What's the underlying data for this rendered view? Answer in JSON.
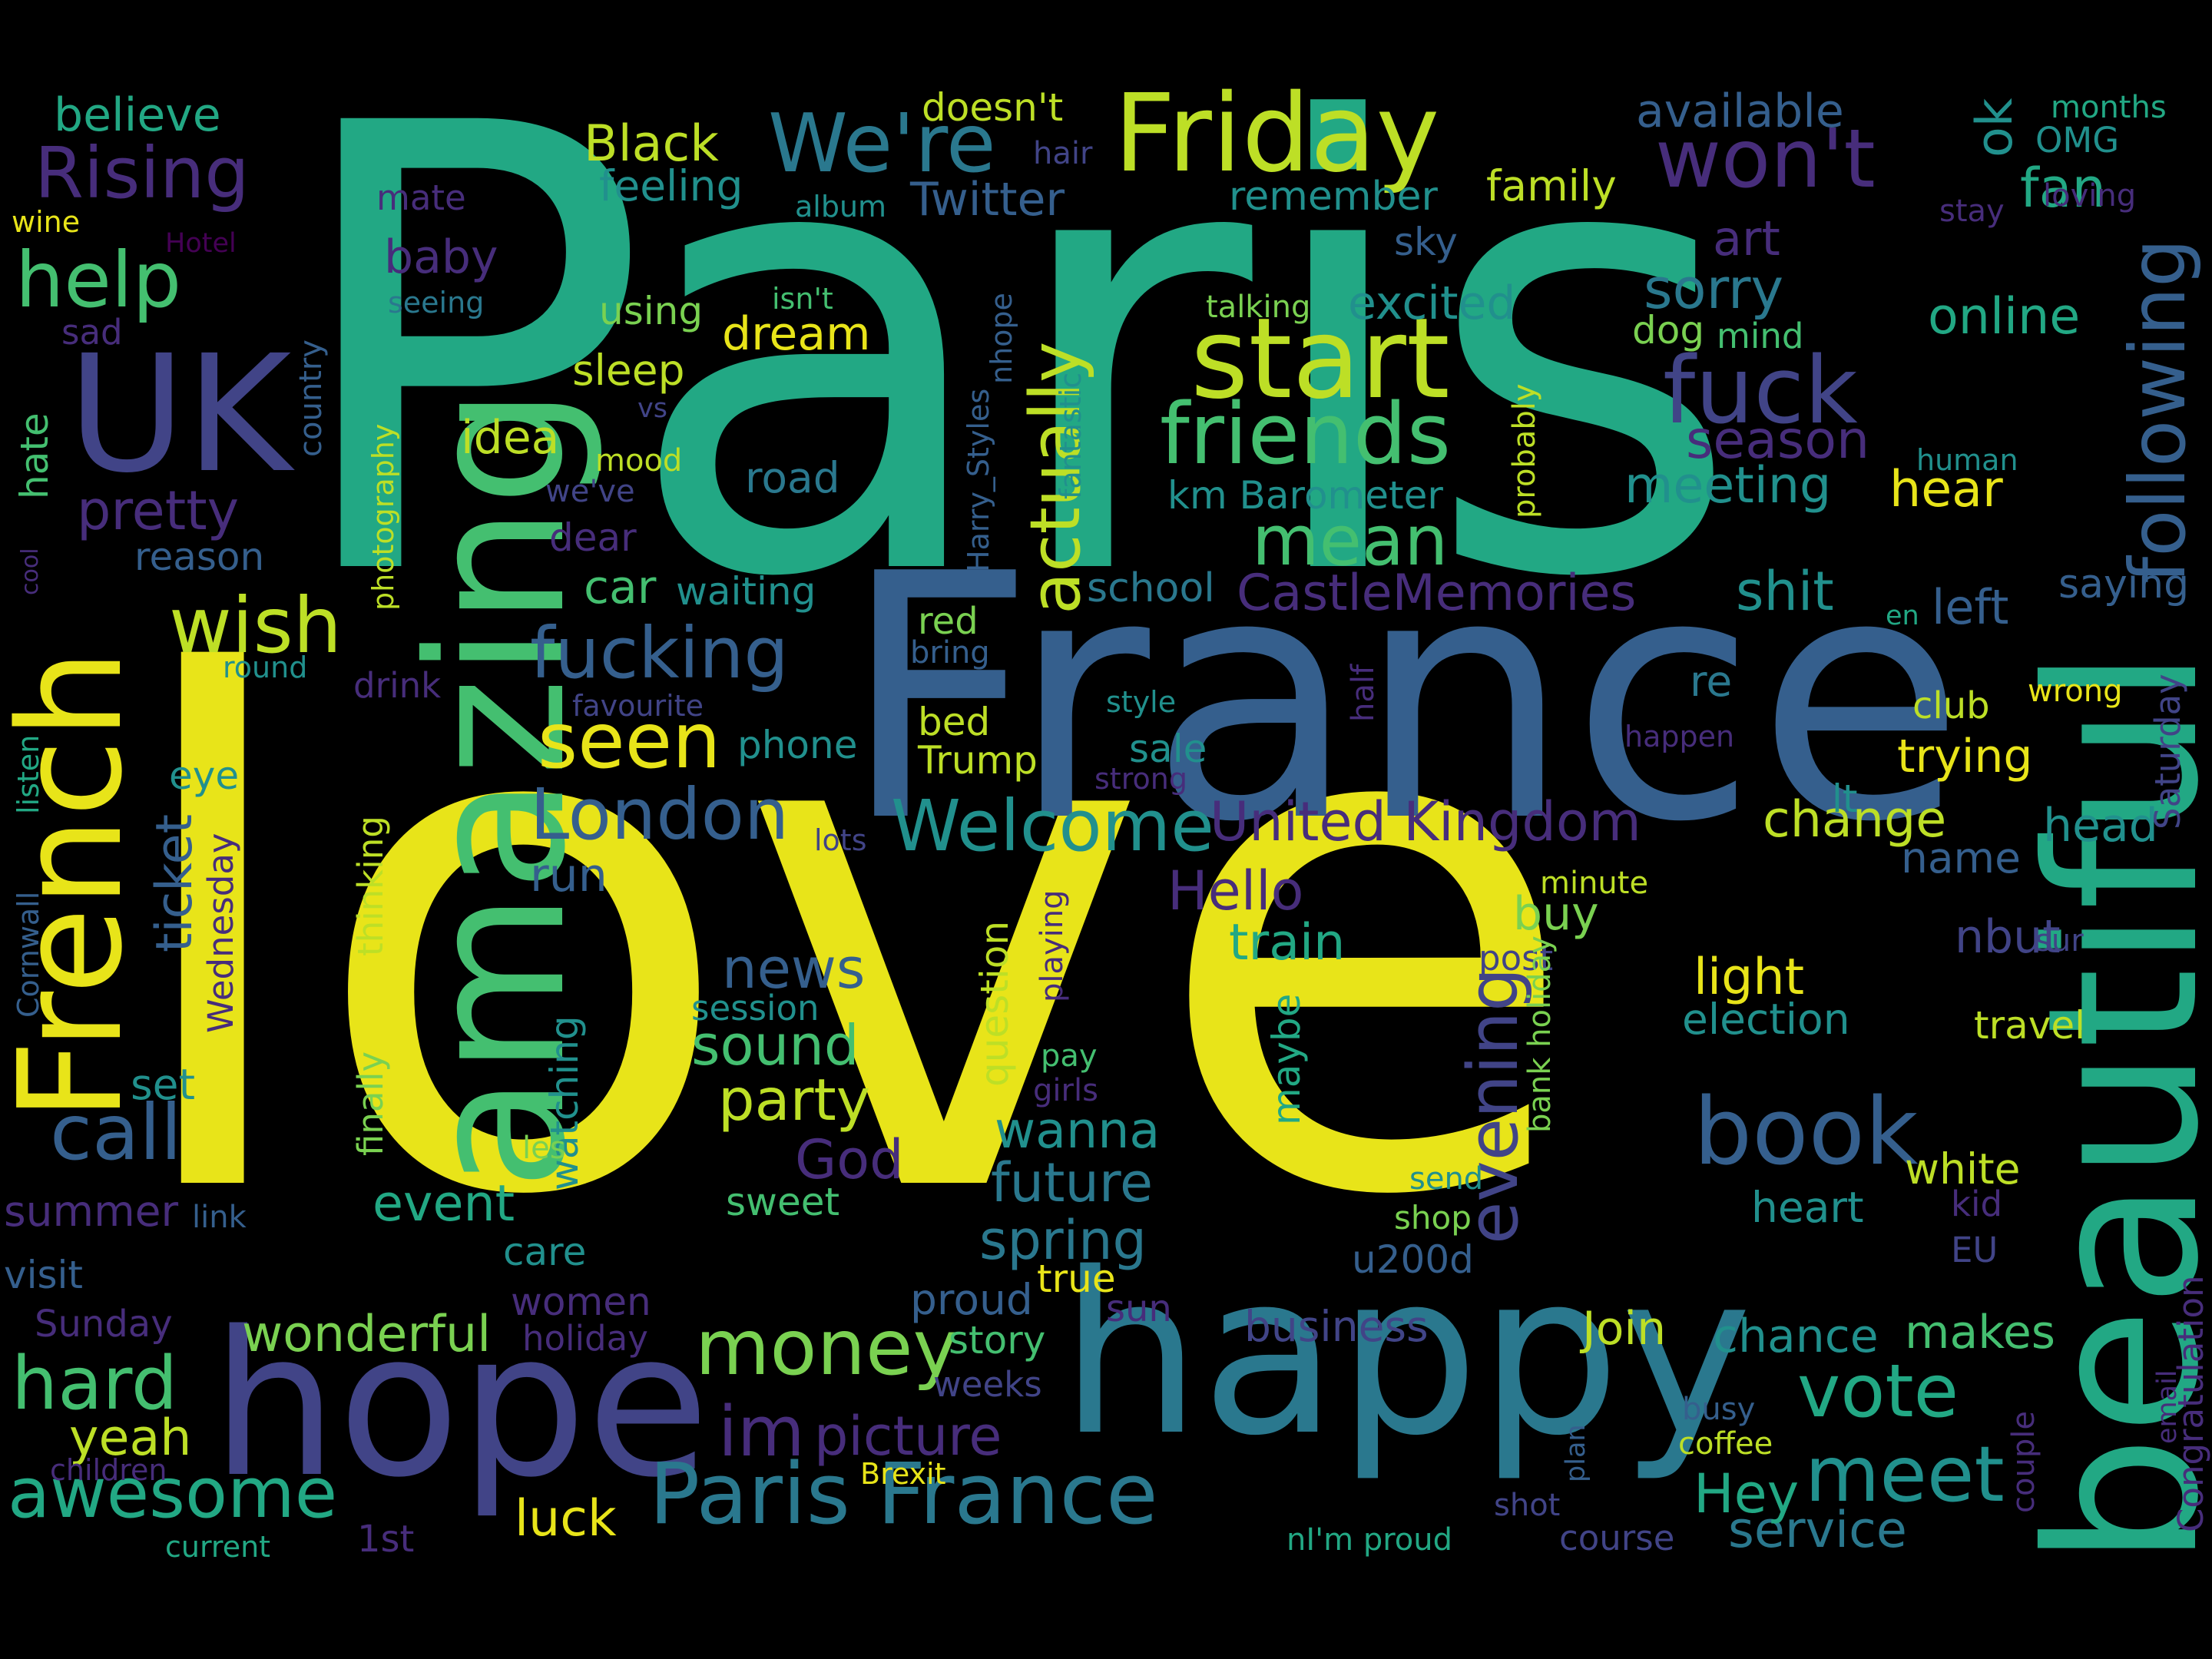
{
  "palette": {
    "background": "#000000",
    "yellow": "#E8E419",
    "lime": "#BDDF26",
    "light_green": "#7AD151",
    "green": "#44BF70",
    "teal_green": "#22A884",
    "teal": "#21908D",
    "blue_teal": "#2A788E",
    "blue": "#355F8D",
    "indigo": "#414487",
    "violet": "#472D7B",
    "dark_violet": "#440154"
  },
  "words": [
    {
      "id": "paris",
      "text": "Paris",
      "color": "teal_green"
    },
    {
      "id": "love",
      "text": "love",
      "color": "yellow"
    },
    {
      "id": "france",
      "text": "France",
      "color": "blue"
    },
    {
      "id": "happy",
      "text": "happy",
      "color": "blue_teal"
    },
    {
      "id": "hope",
      "text": "hope",
      "color": "indigo"
    },
    {
      "id": "beautiful",
      "text": "beautiful",
      "color": "teal_green"
    },
    {
      "id": "amazing",
      "text": "amazing",
      "color": "green"
    },
    {
      "id": "french",
      "text": "French",
      "color": "yellow"
    },
    {
      "id": "uk",
      "text": "UK",
      "color": "indigo"
    },
    {
      "id": "friday",
      "text": "Friday",
      "color": "lime"
    },
    {
      "id": "start",
      "text": "start",
      "color": "lime"
    },
    {
      "id": "paris-france",
      "text": "Paris France",
      "color": "blue_teal"
    },
    {
      "id": "following",
      "text": "following",
      "color": "blue"
    },
    {
      "id": "friends",
      "text": "friends",
      "color": "green"
    },
    {
      "id": "fuck",
      "text": "fuck",
      "color": "indigo"
    },
    {
      "id": "book",
      "text": "book",
      "color": "blue"
    },
    {
      "id": "wont",
      "text": "won't",
      "color": "violet"
    },
    {
      "id": "were",
      "text": "We're",
      "color": "blue_teal"
    },
    {
      "id": "rising",
      "text": "Rising",
      "color": "violet"
    },
    {
      "id": "help",
      "text": "help",
      "color": "green"
    },
    {
      "id": "actually",
      "text": "actually",
      "color": "lime"
    },
    {
      "id": "fucking",
      "text": "fucking",
      "color": "blue"
    },
    {
      "id": "welcome",
      "text": "Welcome",
      "color": "teal"
    },
    {
      "id": "london",
      "text": "London",
      "color": "blue"
    },
    {
      "id": "seen",
      "text": "seen",
      "color": "yellow"
    },
    {
      "id": "money",
      "text": "money",
      "color": "light_green"
    },
    {
      "id": "call",
      "text": "call",
      "color": "blue"
    },
    {
      "id": "hard",
      "text": "hard",
      "color": "green"
    },
    {
      "id": "awesome",
      "text": "awesome",
      "color": "teal_green"
    },
    {
      "id": "meet",
      "text": "meet",
      "color": "teal"
    },
    {
      "id": "vote",
      "text": "vote",
      "color": "teal_green"
    },
    {
      "id": "evening",
      "text": "evening",
      "color": "indigo"
    },
    {
      "id": "wish",
      "text": "wish",
      "color": "lime"
    },
    {
      "id": "mean",
      "text": "mean",
      "color": "green"
    },
    {
      "id": "united-kingdom",
      "text": "United Kingdom",
      "color": "violet"
    },
    {
      "id": "castlememories",
      "text": "CastleMemories",
      "color": "violet"
    },
    {
      "id": "im",
      "text": "im",
      "color": "violet"
    },
    {
      "id": "picture",
      "text": "picture",
      "color": "violet"
    },
    {
      "id": "sound",
      "text": "sound",
      "color": "green"
    },
    {
      "id": "party",
      "text": "party",
      "color": "lime"
    },
    {
      "id": "news",
      "text": "news",
      "color": "blue"
    },
    {
      "id": "hello",
      "text": "Hello",
      "color": "violet"
    },
    {
      "id": "god",
      "text": "God",
      "color": "violet"
    },
    {
      "id": "wonderful",
      "text": "wonderful",
      "color": "light_green"
    },
    {
      "id": "spring",
      "text": "spring",
      "color": "blue_teal"
    },
    {
      "id": "future",
      "text": "future",
      "color": "blue_teal"
    },
    {
      "id": "wanna",
      "text": "wanna",
      "color": "teal"
    },
    {
      "id": "change",
      "text": "change",
      "color": "lime"
    },
    {
      "id": "service",
      "text": "service",
      "color": "blue_teal"
    },
    {
      "id": "hey",
      "text": "Hey",
      "color": "teal_green"
    },
    {
      "id": "luck",
      "text": "luck",
      "color": "yellow"
    },
    {
      "id": "yeah",
      "text": "yeah",
      "color": "lime"
    },
    {
      "id": "pretty",
      "text": "pretty",
      "color": "violet"
    },
    {
      "id": "sorry",
      "text": "sorry",
      "color": "blue_teal"
    },
    {
      "id": "online",
      "text": "online",
      "color": "teal_green"
    },
    {
      "id": "season",
      "text": "season",
      "color": "violet"
    },
    {
      "id": "meeting",
      "text": "meeting",
      "color": "teal"
    },
    {
      "id": "hear",
      "text": "hear",
      "color": "yellow"
    },
    {
      "id": "shit",
      "text": "shit",
      "color": "teal"
    },
    {
      "id": "left",
      "text": "left",
      "color": "blue"
    },
    {
      "id": "trying",
      "text": "trying",
      "color": "yellow"
    },
    {
      "id": "head",
      "text": "head",
      "color": "teal"
    },
    {
      "id": "name",
      "text": "name",
      "color": "blue"
    },
    {
      "id": "light",
      "text": "light",
      "color": "yellow"
    },
    {
      "id": "election",
      "text": "election",
      "color": "teal"
    },
    {
      "id": "white",
      "text": "white",
      "color": "lime"
    },
    {
      "id": "heart",
      "text": "heart",
      "color": "teal"
    },
    {
      "id": "chance",
      "text": "chance",
      "color": "teal"
    },
    {
      "id": "makes",
      "text": "makes",
      "color": "green"
    },
    {
      "id": "join",
      "text": "Join",
      "color": "lime"
    },
    {
      "id": "business",
      "text": "business",
      "color": "indigo"
    },
    {
      "id": "train",
      "text": "train",
      "color": "teal_green"
    },
    {
      "id": "buy",
      "text": "buy",
      "color": "light_green"
    },
    {
      "id": "event",
      "text": "event",
      "color": "teal_green"
    },
    {
      "id": "black",
      "text": "Black",
      "color": "lime"
    },
    {
      "id": "feeling",
      "text": "feeling",
      "color": "teal"
    },
    {
      "id": "twitter",
      "text": "Twitter",
      "color": "blue"
    },
    {
      "id": "believe",
      "text": "believe",
      "color": "teal_green"
    },
    {
      "id": "available",
      "text": "available",
      "color": "blue"
    },
    {
      "id": "doesnt",
      "text": "doesn't",
      "color": "lime"
    },
    {
      "id": "family",
      "text": "family",
      "color": "lime"
    },
    {
      "id": "fan",
      "text": "fan",
      "color": "teal_green"
    },
    {
      "id": "ok",
      "text": "ok",
      "color": "teal"
    },
    {
      "id": "art",
      "text": "art",
      "color": "violet"
    },
    {
      "id": "excited",
      "text": "excited",
      "color": "teal"
    },
    {
      "id": "dream",
      "text": "dream",
      "color": "yellow"
    },
    {
      "id": "sleep",
      "text": "sleep",
      "color": "lime"
    },
    {
      "id": "idea",
      "text": "idea",
      "color": "lime"
    },
    {
      "id": "road",
      "text": "road",
      "color": "blue_teal"
    },
    {
      "id": "km-barometer",
      "text": "km Barometer",
      "color": "teal"
    },
    {
      "id": "baby",
      "text": "baby",
      "color": "violet"
    },
    {
      "id": "remember",
      "text": "remember",
      "color": "teal"
    },
    {
      "id": "dog",
      "text": "dog",
      "color": "light_green"
    },
    {
      "id": "mind",
      "text": "mind",
      "color": "green"
    },
    {
      "id": "car",
      "text": "car",
      "color": "green"
    },
    {
      "id": "waiting",
      "text": "waiting",
      "color": "teal"
    },
    {
      "id": "school",
      "text": "school",
      "color": "blue_teal"
    },
    {
      "id": "reason",
      "text": "reason",
      "color": "blue"
    },
    {
      "id": "ticket",
      "text": "ticket",
      "color": "blue"
    },
    {
      "id": "run",
      "text": "run",
      "color": "blue"
    },
    {
      "id": "set",
      "text": "set",
      "color": "teal"
    },
    {
      "id": "eye",
      "text": "eye",
      "color": "teal"
    },
    {
      "id": "question",
      "text": "question",
      "color": "lime"
    },
    {
      "id": "maybe",
      "text": "maybe",
      "color": "teal_green"
    },
    {
      "id": "watching",
      "text": "watching",
      "color": "teal"
    },
    {
      "id": "summer",
      "text": "summer",
      "color": "violet"
    },
    {
      "id": "visit",
      "text": "visit",
      "color": "blue"
    },
    {
      "id": "sunday",
      "text": "Sunday",
      "color": "violet"
    },
    {
      "id": "women",
      "text": "women",
      "color": "violet"
    },
    {
      "id": "holiday",
      "text": "holiday",
      "color": "violet"
    },
    {
      "id": "proud",
      "text": "proud",
      "color": "blue"
    },
    {
      "id": "story",
      "text": "story",
      "color": "green"
    },
    {
      "id": "true",
      "text": "true",
      "color": "yellow"
    },
    {
      "id": "sun",
      "text": "sun",
      "color": "violet"
    },
    {
      "id": "u200d",
      "text": "u200d",
      "color": "blue"
    },
    {
      "id": "sweet",
      "text": "sweet",
      "color": "green"
    },
    {
      "id": "care",
      "text": "care",
      "color": "teal"
    },
    {
      "id": "bed",
      "text": "bed",
      "color": "lime"
    },
    {
      "id": "trump",
      "text": "Trump",
      "color": "lime"
    },
    {
      "id": "phone",
      "text": "phone",
      "color": "teal"
    },
    {
      "id": "sale",
      "text": "sale",
      "color": "teal"
    },
    {
      "id": "red",
      "text": "red",
      "color": "light_green"
    },
    {
      "id": "congratulation",
      "text": "Congratulation",
      "color": "violet"
    },
    {
      "id": "saturday",
      "text": "Saturday",
      "color": "indigo"
    },
    {
      "id": "nbut",
      "text": "nbut",
      "color": "indigo"
    },
    {
      "id": "travel",
      "text": "travel",
      "color": "lime"
    },
    {
      "id": "club",
      "text": "club",
      "color": "lime"
    },
    {
      "id": "re",
      "text": "re",
      "color": "blue_teal"
    },
    {
      "id": "saying",
      "text": "saying",
      "color": "blue"
    },
    {
      "id": "hate",
      "text": "hate",
      "color": "green"
    },
    {
      "id": "sad",
      "text": "sad",
      "color": "violet"
    },
    {
      "id": "months",
      "text": "months",
      "color": "teal_green"
    },
    {
      "id": "omg",
      "text": "OMG",
      "color": "teal"
    },
    {
      "id": "loving",
      "text": "loving",
      "color": "violet"
    },
    {
      "id": "stay",
      "text": "stay",
      "color": "violet"
    },
    {
      "id": "wine",
      "text": "wine",
      "color": "yellow"
    },
    {
      "id": "hotel",
      "text": "Hotel",
      "color": "dark_violet"
    },
    {
      "id": "mate",
      "text": "mate",
      "color": "violet"
    },
    {
      "id": "hair",
      "text": "hair",
      "color": "indigo"
    },
    {
      "id": "album",
      "text": "album",
      "color": "teal"
    },
    {
      "id": "seeing",
      "text": "seeing",
      "color": "blue_teal"
    },
    {
      "id": "using",
      "text": "using",
      "color": "light_green"
    },
    {
      "id": "isnt",
      "text": "isn't",
      "color": "green"
    },
    {
      "id": "nhope",
      "text": "nhope",
      "color": "blue"
    },
    {
      "id": "harry-styles",
      "text": "Harry_Styles",
      "color": "blue"
    },
    {
      "id": "fantastic",
      "text": "fantastic",
      "color": "teal"
    },
    {
      "id": "talking",
      "text": "talking",
      "color": "light_green"
    },
    {
      "id": "sky",
      "text": "sky",
      "color": "blue"
    },
    {
      "id": "probably",
      "text": "probably",
      "color": "lime"
    },
    {
      "id": "human",
      "text": "human",
      "color": "teal"
    },
    {
      "id": "country",
      "text": "country",
      "color": "blue"
    },
    {
      "id": "photography",
      "text": "photography",
      "color": "lime"
    },
    {
      "id": "vs",
      "text": "vs",
      "color": "indigo"
    },
    {
      "id": "mood",
      "text": "mood",
      "color": "lime"
    },
    {
      "id": "weve",
      "text": "we've",
      "color": "indigo"
    },
    {
      "id": "dear",
      "text": "dear",
      "color": "violet"
    },
    {
      "id": "cool",
      "text": "cool",
      "color": "violet"
    },
    {
      "id": "round",
      "text": "round",
      "color": "teal"
    },
    {
      "id": "drink",
      "text": "drink",
      "color": "violet"
    },
    {
      "id": "bring",
      "text": "bring",
      "color": "blue"
    },
    {
      "id": "favourite",
      "text": "favourite",
      "color": "indigo"
    },
    {
      "id": "style",
      "text": "style",
      "color": "teal"
    },
    {
      "id": "half",
      "text": "half",
      "color": "violet"
    },
    {
      "id": "strong",
      "text": "strong",
      "color": "violet"
    },
    {
      "id": "en",
      "text": "en",
      "color": "teal_green"
    },
    {
      "id": "wrong",
      "text": "wrong",
      "color": "yellow"
    },
    {
      "id": "happen",
      "text": "happen",
      "color": "violet"
    },
    {
      "id": "lt",
      "text": "lt",
      "color": "teal"
    },
    {
      "id": "lots",
      "text": "lots",
      "color": "indigo"
    },
    {
      "id": "thinking",
      "text": "thinking",
      "color": "lime"
    },
    {
      "id": "finally",
      "text": "finally",
      "color": "light_green"
    },
    {
      "id": "wednesday",
      "text": "Wednesday",
      "color": "violet"
    },
    {
      "id": "listen",
      "text": "listen",
      "color": "teal_green"
    },
    {
      "id": "cornwall",
      "text": "Cornwall",
      "color": "blue"
    },
    {
      "id": "minute",
      "text": "minute",
      "color": "lime"
    },
    {
      "id": "post",
      "text": "post",
      "color": "indigo"
    },
    {
      "id": "sur",
      "text": "sur",
      "color": "indigo"
    },
    {
      "id": "playing",
      "text": "playing",
      "color": "violet"
    },
    {
      "id": "session",
      "text": "session",
      "color": "teal"
    },
    {
      "id": "pay",
      "text": "pay",
      "color": "green"
    },
    {
      "id": "girls",
      "text": "girls",
      "color": "violet"
    },
    {
      "id": "les",
      "text": "les",
      "color": "light_green"
    },
    {
      "id": "link",
      "text": "link",
      "color": "blue"
    },
    {
      "id": "bank-holiday",
      "text": "bank holiday",
      "color": "light_green"
    },
    {
      "id": "send",
      "text": "send",
      "color": "teal"
    },
    {
      "id": "shop",
      "text": "shop",
      "color": "light_green"
    },
    {
      "id": "kid",
      "text": "kid",
      "color": "violet"
    },
    {
      "id": "eu",
      "text": "EU",
      "color": "indigo"
    },
    {
      "id": "email",
      "text": "email",
      "color": "violet"
    },
    {
      "id": "couple",
      "text": "couple",
      "color": "violet"
    },
    {
      "id": "busy",
      "text": "busy",
      "color": "blue"
    },
    {
      "id": "coffee",
      "text": "coffee",
      "color": "lime"
    },
    {
      "id": "plan",
      "text": "plan",
      "color": "blue"
    },
    {
      "id": "shot",
      "text": "shot",
      "color": "indigo"
    },
    {
      "id": "course",
      "text": "course",
      "color": "indigo"
    },
    {
      "id": "ni-m-proud",
      "text": "nI'm proud",
      "color": "teal_green"
    },
    {
      "id": "brexit",
      "text": "Brexit",
      "color": "yellow"
    },
    {
      "id": "weeks",
      "text": "weeks",
      "color": "indigo"
    },
    {
      "id": "children",
      "text": "children",
      "color": "violet"
    },
    {
      "id": "current",
      "text": "current",
      "color": "teal_green"
    },
    {
      "id": "1st",
      "text": "1st",
      "color": "violet"
    }
  ]
}
